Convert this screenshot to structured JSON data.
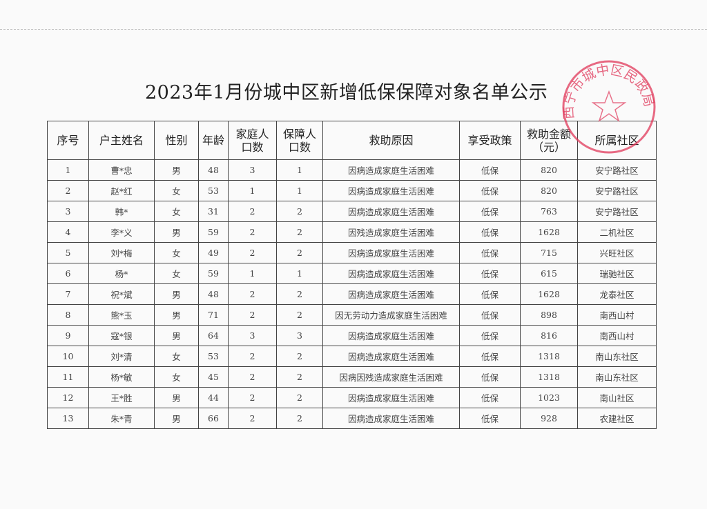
{
  "title": "2023年1月份城中区新增低保保障对象名单公示",
  "seal": {
    "text": "西宁市城中区民政局",
    "color": "#e0385a"
  },
  "headers": [
    "序号",
    "户主姓名",
    "性别",
    "年龄",
    "家庭人口数",
    "保障人口数",
    "救助原因",
    "享受政策",
    "救助金额（元）",
    "所属社区"
  ],
  "rows": [
    [
      "1",
      "曹*忠",
      "男",
      "48",
      "3",
      "1",
      "因病造成家庭生活困难",
      "低保",
      "820",
      "安宁路社区"
    ],
    [
      "2",
      "赵*红",
      "女",
      "53",
      "1",
      "1",
      "因病造成家庭生活困难",
      "低保",
      "820",
      "安宁路社区"
    ],
    [
      "3",
      "韩*",
      "女",
      "31",
      "2",
      "2",
      "因病造成家庭生活困难",
      "低保",
      "763",
      "安宁路社区"
    ],
    [
      "4",
      "李*义",
      "男",
      "59",
      "2",
      "2",
      "因残造成家庭生活困难",
      "低保",
      "1628",
      "二机社区"
    ],
    [
      "5",
      "刘*梅",
      "女",
      "49",
      "2",
      "2",
      "因病造成家庭生活困难",
      "低保",
      "715",
      "兴旺社区"
    ],
    [
      "6",
      "杨*",
      "女",
      "59",
      "1",
      "1",
      "因病造成家庭生活困难",
      "低保",
      "615",
      "瑞驰社区"
    ],
    [
      "7",
      "祝*斌",
      "男",
      "48",
      "2",
      "2",
      "因病造成家庭生活困难",
      "低保",
      "1628",
      "龙泰社区"
    ],
    [
      "8",
      "熊*玉",
      "男",
      "71",
      "2",
      "2",
      "因无劳动力造成家庭生活困难",
      "低保",
      "898",
      "南西山村"
    ],
    [
      "9",
      "寇*银",
      "男",
      "64",
      "3",
      "3",
      "因病造成家庭生活困难",
      "低保",
      "816",
      "南西山村"
    ],
    [
      "10",
      "刘*清",
      "女",
      "53",
      "2",
      "2",
      "因病造成家庭生活困难",
      "低保",
      "1318",
      "南山东社区"
    ],
    [
      "11",
      "杨*敏",
      "女",
      "45",
      "2",
      "2",
      "因病因残造成家庭生活困难",
      "低保",
      "1318",
      "南山东社区"
    ],
    [
      "12",
      "王*胜",
      "男",
      "44",
      "2",
      "2",
      "因病造成家庭生活困难",
      "低保",
      "1023",
      "南山社区"
    ],
    [
      "13",
      "朱*青",
      "男",
      "66",
      "2",
      "2",
      "因病造成家庭生活困难",
      "低保",
      "928",
      "农建社区"
    ]
  ]
}
